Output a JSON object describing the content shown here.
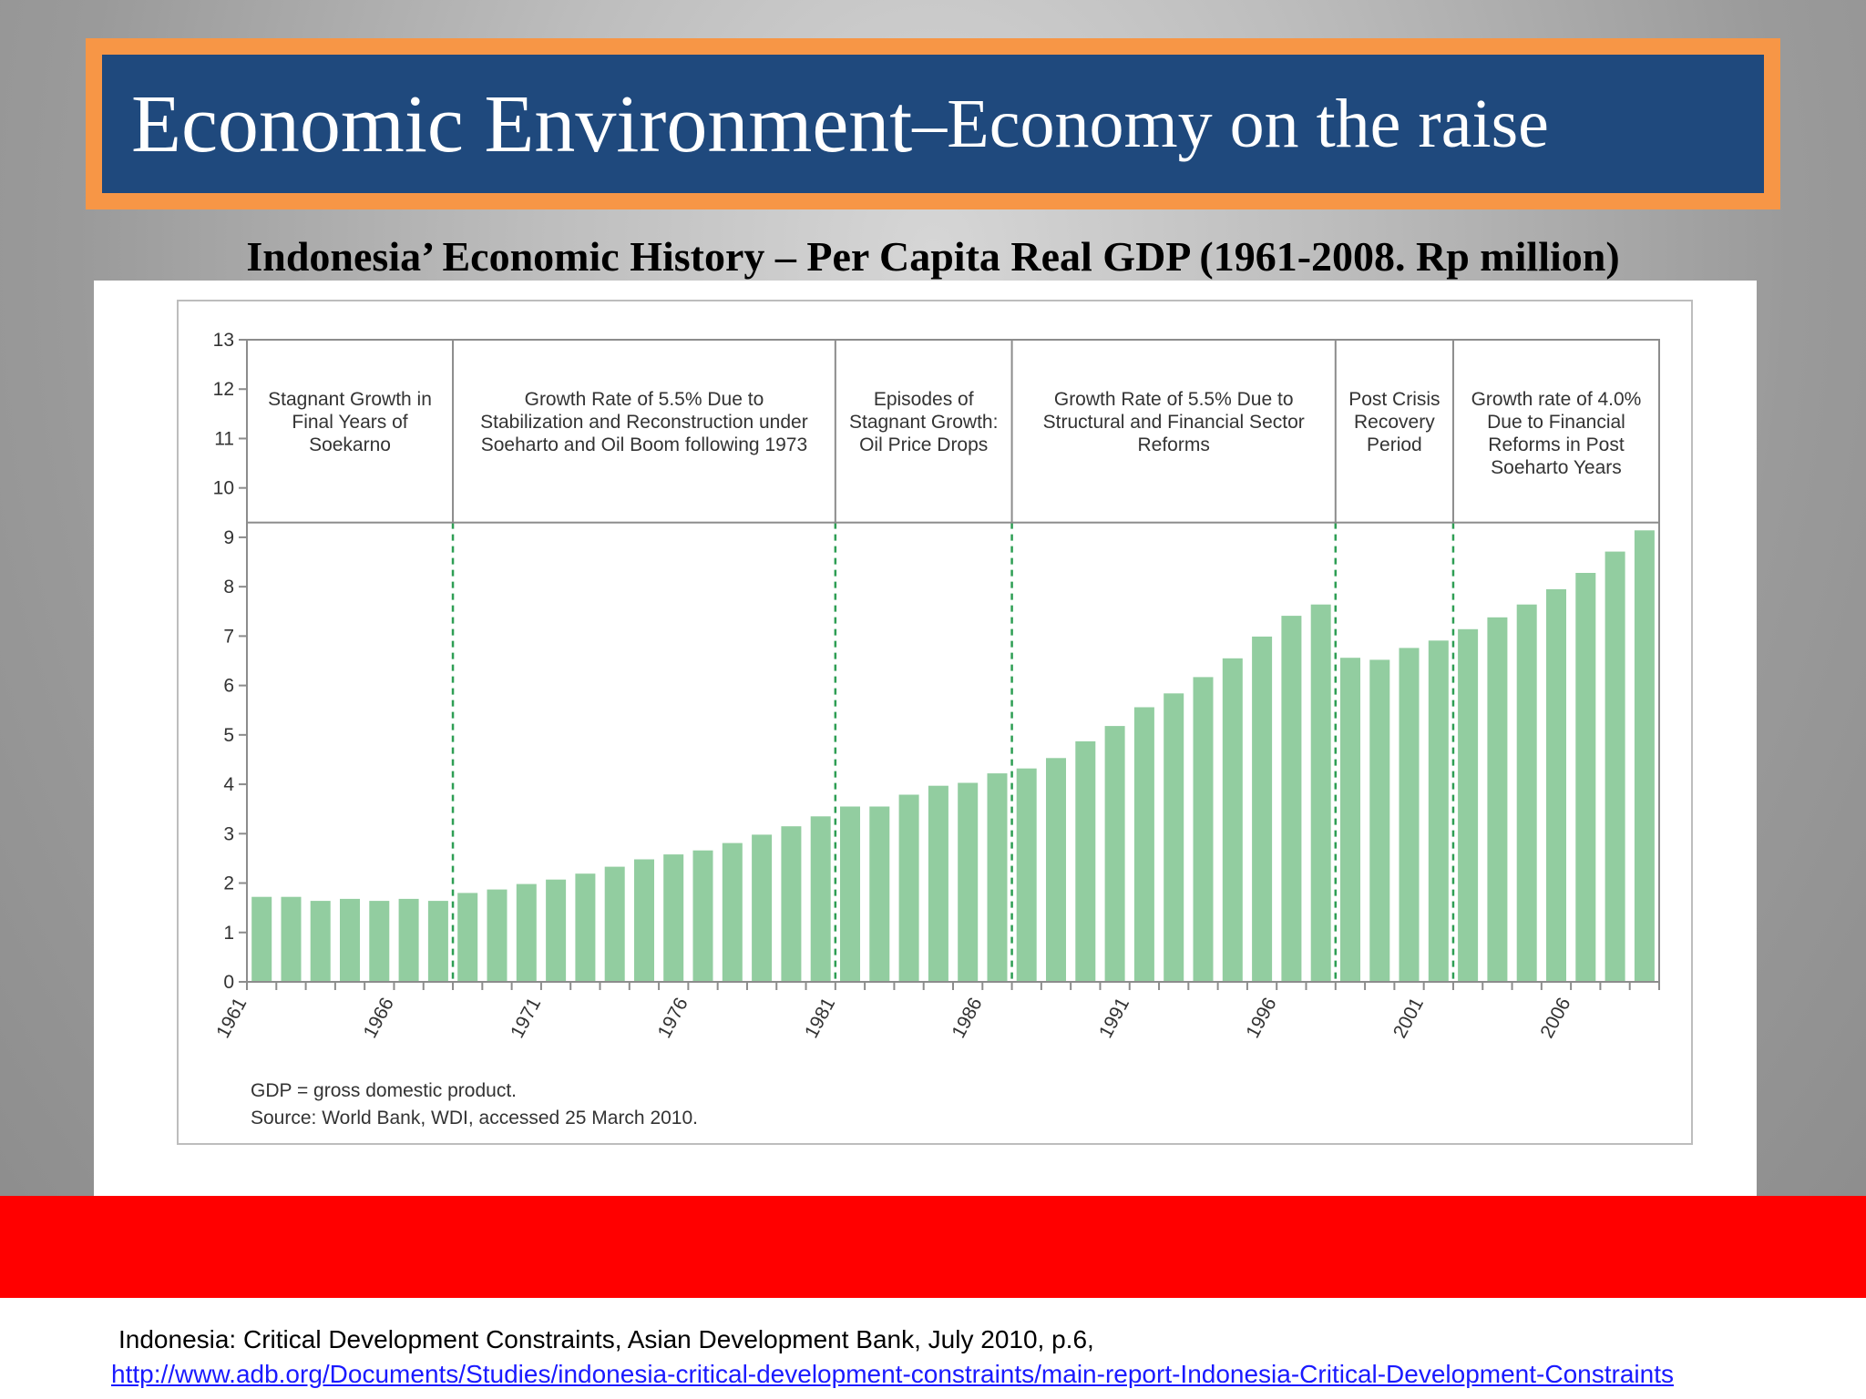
{
  "slide": {
    "title_main": "Economic Environment",
    "title_sep": " – ",
    "title_sub": "Economy on the raise",
    "subtitle": "Indonesia’ Economic History – Per Capita Real GDP (1961-2008. Rp million)",
    "citation": "Indonesia: Critical Development Constraints, Asian Development Bank, July 2010, p.6,",
    "citation_link": "http://www.adb.org/Documents/Studies/indonesia-critical-development-constraints/main-report-Indonesia-Critical-Development-Constraints"
  },
  "colors": {
    "bar": "#92cda0",
    "title_fill": "#1f497d",
    "title_border": "#f79646",
    "divider": "#2e9e54",
    "band": "#ff0000"
  },
  "chart_data": {
    "type": "bar",
    "ylim": [
      0,
      13
    ],
    "yticks": [
      0,
      1,
      2,
      3,
      4,
      5,
      6,
      7,
      8,
      9,
      10,
      11,
      12,
      13
    ],
    "x_tick_labels": [
      "1961",
      "1966",
      "1971",
      "1976",
      "1981",
      "1986",
      "1991",
      "1996",
      "2001",
      "2006"
    ],
    "x": [
      1961,
      1962,
      1963,
      1964,
      1965,
      1966,
      1967,
      1968,
      1969,
      1970,
      1971,
      1972,
      1973,
      1974,
      1975,
      1976,
      1977,
      1978,
      1979,
      1980,
      1981,
      1982,
      1983,
      1984,
      1985,
      1986,
      1987,
      1988,
      1989,
      1990,
      1991,
      1992,
      1993,
      1994,
      1995,
      1996,
      1997,
      1998,
      1999,
      2000,
      2001,
      2002,
      2003,
      2004,
      2005,
      2006,
      2007,
      2008
    ],
    "values": [
      1.72,
      1.72,
      1.64,
      1.68,
      1.64,
      1.68,
      1.64,
      1.8,
      1.87,
      1.98,
      2.07,
      2.19,
      2.33,
      2.48,
      2.58,
      2.66,
      2.81,
      2.98,
      3.15,
      3.35,
      3.55,
      3.55,
      3.79,
      3.97,
      4.03,
      4.22,
      4.32,
      4.53,
      4.87,
      5.18,
      5.56,
      5.84,
      6.17,
      6.55,
      6.99,
      7.41,
      7.64,
      6.56,
      6.52,
      6.76,
      6.91,
      7.14,
      7.38,
      7.64,
      7.95,
      8.28,
      8.71,
      9.14
    ],
    "periods": [
      {
        "label": "Stagnant Growth in Final Years of Soekarno",
        "start": 1961,
        "end": 1967
      },
      {
        "label": "Growth Rate of 5.5% Due to Stabilization and Reconstruction under Soeharto and Oil Boom following 1973",
        "start": 1968,
        "end": 1980
      },
      {
        "label": "Episodes of Stagnant Growth: Oil Price Drops",
        "start": 1981,
        "end": 1986
      },
      {
        "label": "Growth Rate of 5.5% Due to Structural and Financial Sector Reforms",
        "start": 1987,
        "end": 1997
      },
      {
        "label": "Post Crisis Recovery Period",
        "start": 1998,
        "end": 2001
      },
      {
        "label": "Growth rate of 4.0% Due to Financial Reforms in Post Soeharto Years",
        "start": 2002,
        "end": 2008
      }
    ],
    "notes": [
      "GDP = gross domestic product.",
      "Source: World Bank, WDI, accessed 25 March 2010."
    ]
  }
}
